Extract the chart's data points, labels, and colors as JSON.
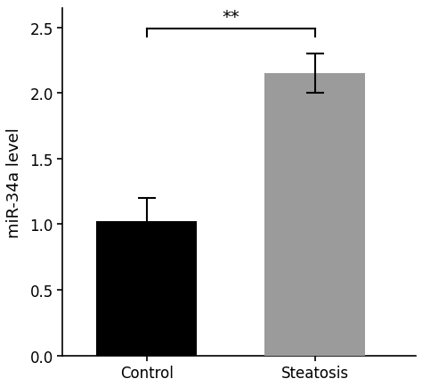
{
  "categories": [
    "Control",
    "Steatosis"
  ],
  "values": [
    1.02,
    2.15
  ],
  "errors": [
    0.18,
    0.15
  ],
  "bar_colors": [
    "#000000",
    "#9b9b9b"
  ],
  "bar_width": 0.6,
  "bar_positions": [
    0.5,
    1.5
  ],
  "ylabel": "miR-34a level",
  "ylim": [
    0,
    2.65
  ],
  "xlim": [
    0.0,
    2.1
  ],
  "yticks": [
    0.0,
    0.5,
    1.0,
    1.5,
    2.0,
    2.5
  ],
  "significance_label": "**",
  "sig_y": 2.52,
  "sig_bar_y": 2.49,
  "sig_drop": 0.06,
  "background_color": "#ffffff",
  "tick_fontsize": 12,
  "label_fontsize": 13,
  "sig_fontsize": 14
}
